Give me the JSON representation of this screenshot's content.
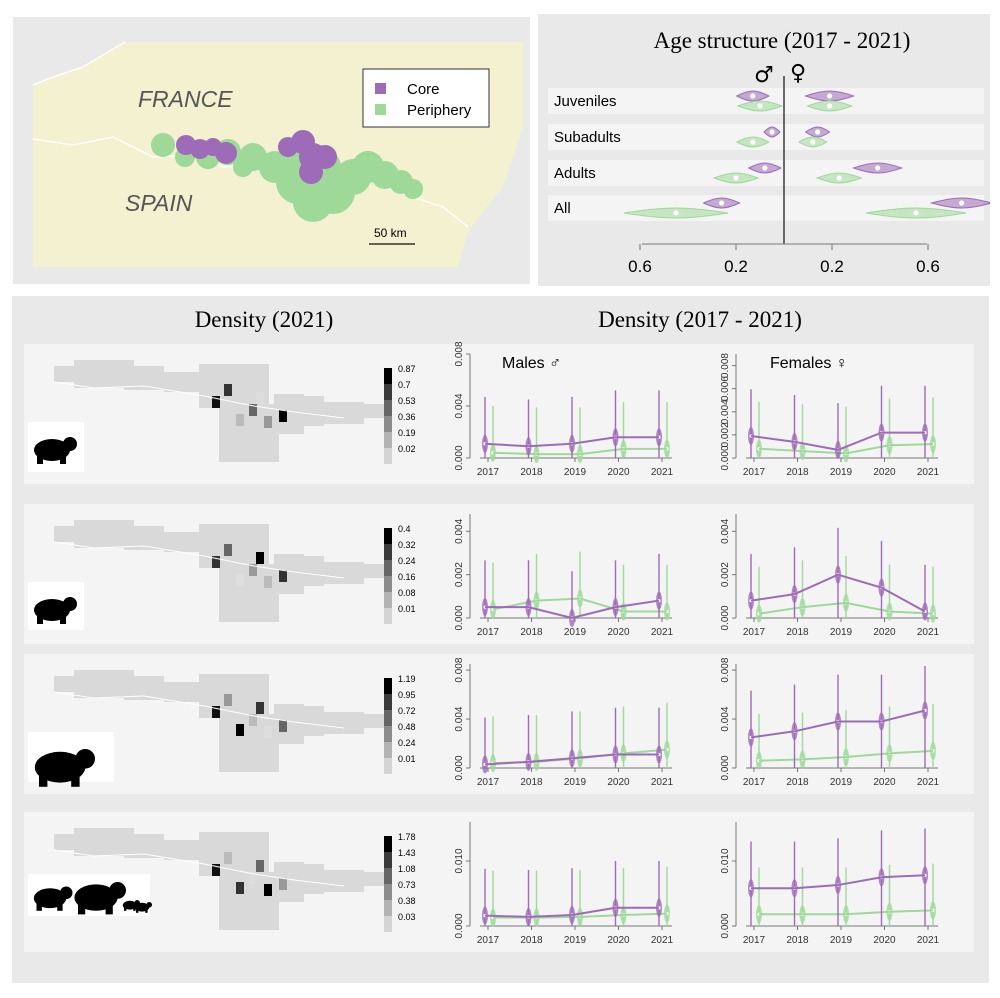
{
  "map": {
    "country_top": "FRANCE",
    "country_bottom": "SPAIN",
    "legend": [
      {
        "label": "Core",
        "color": "#9d6bb7"
      },
      {
        "label": "Periphery",
        "color": "#9ed99a"
      }
    ],
    "scalebar_label": "50 km",
    "land_color": "#f3f1d0"
  },
  "age_structure": {
    "title": "Age structure (2017 - 2021)",
    "male_symbol": "♂",
    "female_symbol": "♀",
    "rows": [
      "Juveniles",
      "Subadults",
      "Adults",
      "All"
    ],
    "axis_ticks_left": [
      "0.6",
      "0.2"
    ],
    "axis_ticks_right": [
      "0.2",
      "0.6"
    ],
    "chart_data": {
      "type": "violin",
      "xlim": [
        0,
        0.85
      ],
      "series": [
        {
          "name": "Core",
          "color": "#9d6bb7"
        },
        {
          "name": "Periphery",
          "color": "#9ed99a"
        }
      ],
      "values": {
        "Juveniles": {
          "male_core": 0.13,
          "male_periphery": 0.1,
          "female_core": 0.19,
          "female_periphery": 0.19
        },
        "Subadults": {
          "male_core": 0.05,
          "male_periphery": 0.13,
          "female_core": 0.14,
          "female_periphery": 0.12
        },
        "Adults": {
          "male_core": 0.08,
          "male_periphery": 0.2,
          "female_core": 0.39,
          "female_periphery": 0.23
        },
        "All": {
          "male_core": 0.26,
          "male_periphery": 0.45,
          "female_core": 0.74,
          "female_periphery": 0.55
        }
      }
    }
  },
  "density": {
    "title_2021": "Density (2021)",
    "title_series": "Density (2017 - 2021)",
    "males_label": "Males ♂",
    "females_label": "Females ♀",
    "years": [
      "2017",
      "2018",
      "2019",
      "2020",
      "2021"
    ],
    "colors": {
      "core": "#9d6bb7",
      "periphery": "#9ed99a"
    },
    "rows": [
      {
        "group": "Juveniles",
        "map_legend": [
          "0.87",
          "0.7",
          "0.53",
          "0.36",
          "0.19",
          "0.02"
        ],
        "males": {
          "ticks": [
            "0.000",
            "0.004",
            "0.008"
          ],
          "ylim": [
            0,
            0.008
          ],
          "core": [
            0.0011,
            0.0009,
            0.0011,
            0.0016,
            0.0016
          ],
          "periphery": [
            0.0004,
            0.0003,
            0.0003,
            0.0007,
            0.0007
          ]
        },
        "females": {
          "ticks": [
            "0.000",
            "0.002",
            "0.004",
            "0.006",
            "0.008"
          ],
          "ylim": [
            0,
            0.009
          ],
          "core": [
            0.0019,
            0.0014,
            0.0007,
            0.0022,
            0.0022
          ],
          "periphery": [
            0.0008,
            0.0006,
            0.0004,
            0.0011,
            0.0012
          ]
        }
      },
      {
        "group": "Subadults",
        "map_legend": [
          "0.4",
          "0.32",
          "0.24",
          "0.16",
          "0.08",
          "0.01"
        ],
        "males": {
          "ticks": [
            "0.000",
            "0.002",
            "0.004"
          ],
          "ylim": [
            0,
            0.0048
          ],
          "core": [
            0.0005,
            0.0005,
            0.0,
            0.0005,
            0.0008
          ],
          "periphery": [
            0.0004,
            0.0008,
            0.0009,
            0.0003,
            0.0003
          ]
        },
        "females": {
          "ticks": [
            "0.000",
            "0.002",
            "0.004"
          ],
          "ylim": [
            0,
            0.0048
          ],
          "core": [
            0.0008,
            0.0011,
            0.002,
            0.0014,
            0.0003
          ],
          "periphery": [
            0.0002,
            0.0005,
            0.0007,
            0.0003,
            0.0002
          ]
        }
      },
      {
        "group": "Adults",
        "map_legend": [
          "1.19",
          "0.95",
          "0.72",
          "0.48",
          "0.24",
          "0.01"
        ],
        "males": {
          "ticks": [
            "0.000",
            "0.004",
            "0.008"
          ],
          "ylim": [
            0,
            0.0085
          ],
          "core": [
            0.0003,
            0.0005,
            0.0008,
            0.0011,
            0.0011
          ],
          "periphery": [
            0.0004,
            0.0005,
            0.0008,
            0.0012,
            0.0015
          ]
        },
        "females": {
          "ticks": [
            "0.000",
            "0.004",
            "0.008"
          ],
          "ylim": [
            0,
            0.0085
          ],
          "core": [
            0.0025,
            0.003,
            0.0038,
            0.0038,
            0.0047
          ],
          "periphery": [
            0.0006,
            0.0007,
            0.0009,
            0.0012,
            0.0014
          ]
        }
      },
      {
        "group": "All",
        "map_legend": [
          "1.78",
          "1.43",
          "1.08",
          "0.73",
          "0.38",
          "0.03"
        ],
        "males": {
          "ticks": [
            "0.000",
            "0.010"
          ],
          "ylim": [
            0,
            0.016
          ],
          "core": [
            0.0016,
            0.0014,
            0.0017,
            0.0028,
            0.0028
          ],
          "periphery": [
            0.0013,
            0.0013,
            0.0014,
            0.0017,
            0.0019
          ]
        },
        "females": {
          "ticks": [
            "0.000",
            "0.010"
          ],
          "ylim": [
            0,
            0.016
          ],
          "core": [
            0.0058,
            0.0058,
            0.0063,
            0.0075,
            0.0078
          ],
          "periphery": [
            0.0018,
            0.0018,
            0.0018,
            0.0022,
            0.0024
          ]
        }
      }
    ]
  }
}
